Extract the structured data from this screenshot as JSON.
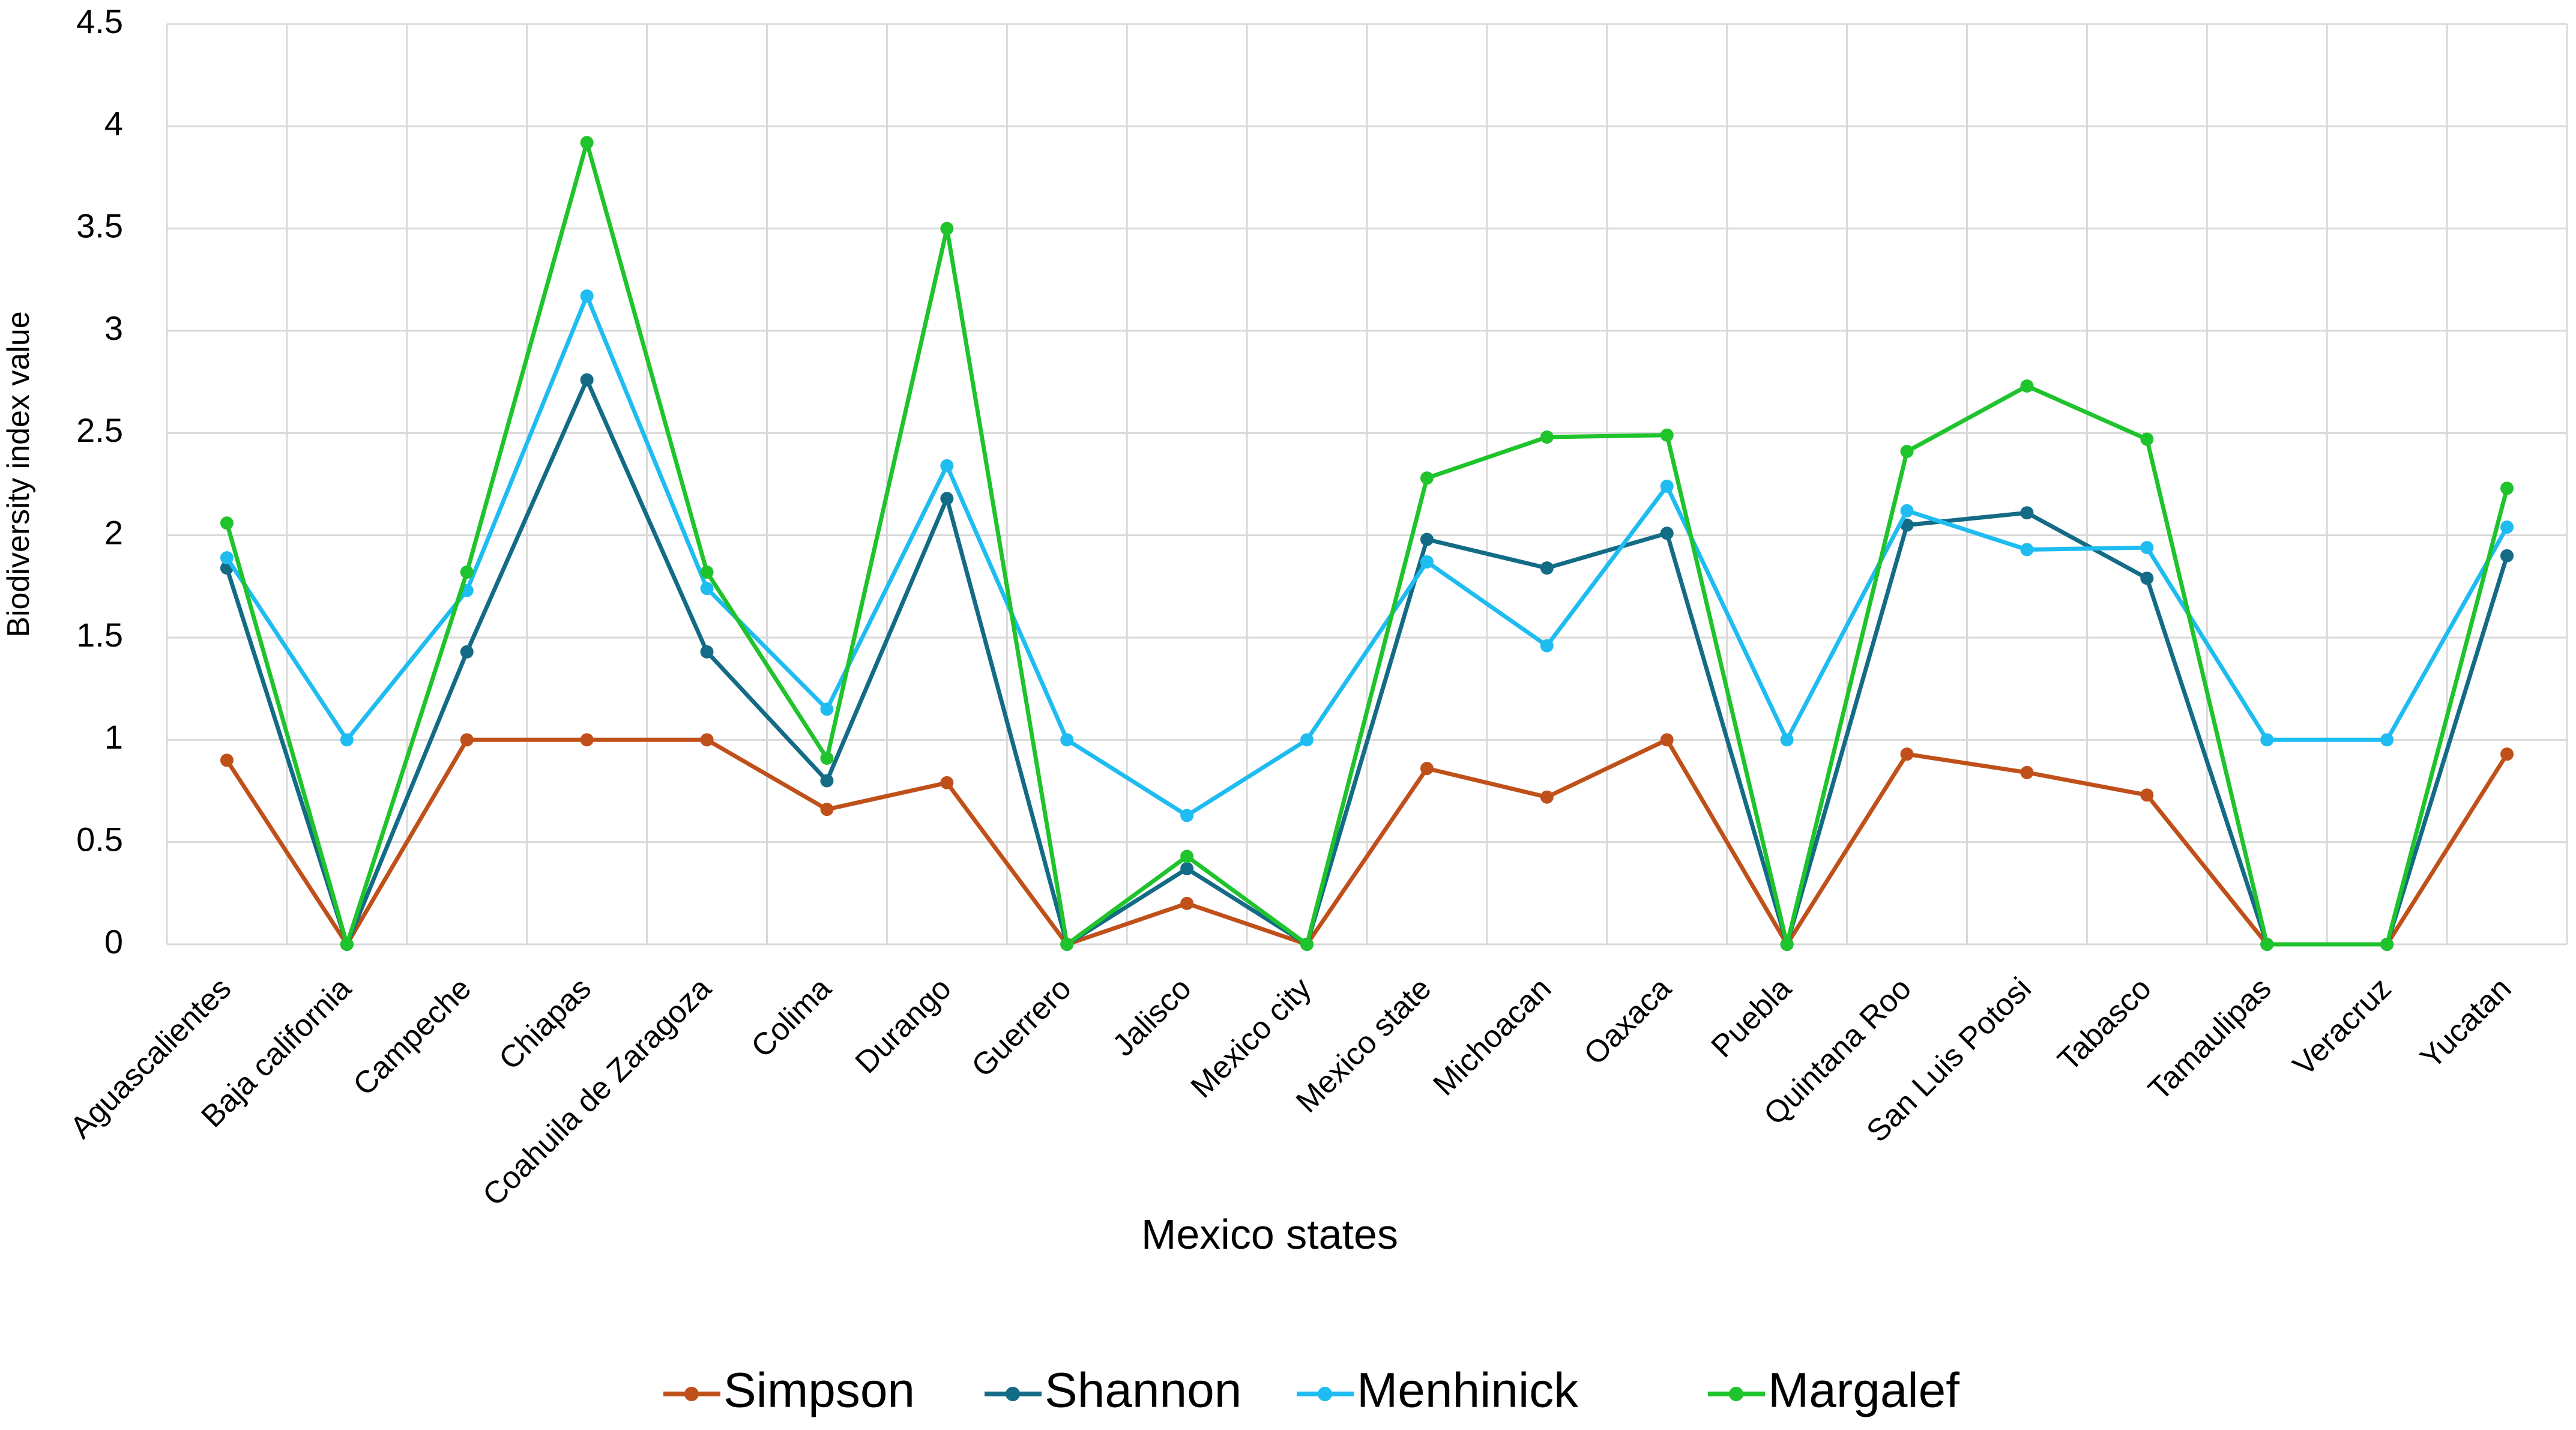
{
  "chart_data": {
    "type": "line",
    "title": "",
    "xlabel": "Mexico states",
    "ylabel": "Biodiversity index value",
    "ylim": [
      0,
      4.5
    ],
    "yticks": [
      "0",
      "0.5",
      "1",
      "1.5",
      "2",
      "2.5",
      "3",
      "3.5",
      "4",
      "4.5"
    ],
    "grid": true,
    "legend_position": "bottom",
    "categories": [
      "Aguascalientes",
      "Baja california",
      "Campeche",
      "Chiapas",
      "Coahuila de Zaragoza",
      "Colima",
      "Durango",
      "Guerrero",
      "Jalisco",
      "Mexico city",
      "Mexico state",
      "Michoacan",
      "Oaxaca",
      "Puebla",
      "Quintana Roo",
      "San Luis Potosi",
      "Tabasco",
      "Tamaulipas",
      "Veracruz",
      "Yucatan"
    ],
    "series": [
      {
        "name": "Simpson",
        "color": "#c0501a",
        "values": [
          0.9,
          0,
          1.0,
          1.0,
          1.0,
          0.66,
          0.79,
          0,
          0.2,
          0,
          0.86,
          0.72,
          1.0,
          0,
          0.93,
          0.84,
          0.73,
          0,
          0,
          0.93
        ]
      },
      {
        "name": "Shannon",
        "color": "#136b85",
        "values": [
          1.84,
          0,
          1.43,
          2.76,
          1.43,
          0.8,
          2.18,
          0,
          0.37,
          0,
          1.98,
          1.84,
          2.01,
          0,
          2.05,
          2.11,
          1.79,
          0,
          0,
          1.9
        ]
      },
      {
        "name": "Menhinick",
        "color": "#1ebcf0",
        "values": [
          1.89,
          1.0,
          1.73,
          3.17,
          1.74,
          1.15,
          2.34,
          1.0,
          0.63,
          1.0,
          1.87,
          1.46,
          2.24,
          1.0,
          2.12,
          1.93,
          1.94,
          1.0,
          1.0,
          2.04
        ]
      },
      {
        "name": "Margalef",
        "color": "#1fc32b",
        "values": [
          2.06,
          0,
          1.82,
          3.92,
          1.82,
          0.91,
          3.5,
          0,
          0.43,
          0,
          2.28,
          2.48,
          2.49,
          0,
          2.41,
          2.73,
          2.47,
          0,
          0,
          2.23
        ]
      }
    ]
  }
}
